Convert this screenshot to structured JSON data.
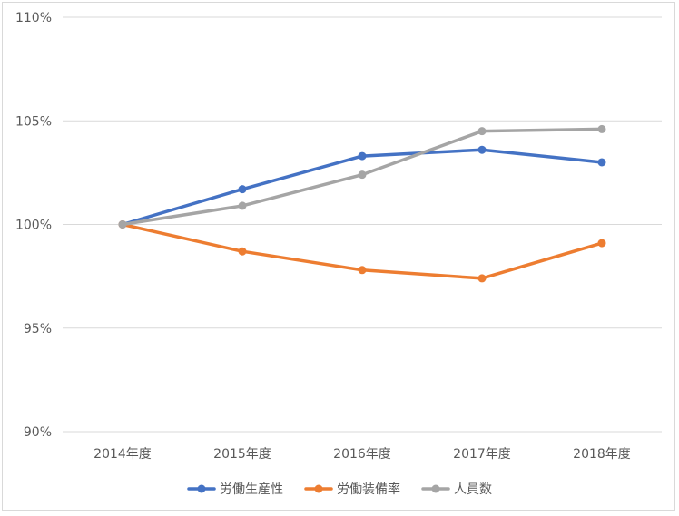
{
  "chart_data": {
    "type": "line",
    "categories": [
      "2014年度",
      "2015年度",
      "2016年度",
      "2017年度",
      "2018年度"
    ],
    "series": [
      {
        "name": "労働生産性",
        "color": "#4472C4",
        "values": [
          100.0,
          101.7,
          103.3,
          103.6,
          103.0
        ]
      },
      {
        "name": "労働装備率",
        "color": "#ED7D31",
        "values": [
          100.0,
          98.7,
          97.8,
          97.4,
          99.1
        ]
      },
      {
        "name": "人員数",
        "color": "#A5A5A5",
        "values": [
          100.0,
          100.9,
          102.4,
          104.5,
          104.6
        ]
      }
    ],
    "ylim": [
      90,
      110
    ],
    "y_ticks": [
      90,
      95,
      100,
      105,
      110
    ],
    "y_tick_labels": [
      "90%",
      "95%",
      "100%",
      "105%",
      "110%"
    ],
    "grid": true,
    "legend_position": "bottom"
  }
}
